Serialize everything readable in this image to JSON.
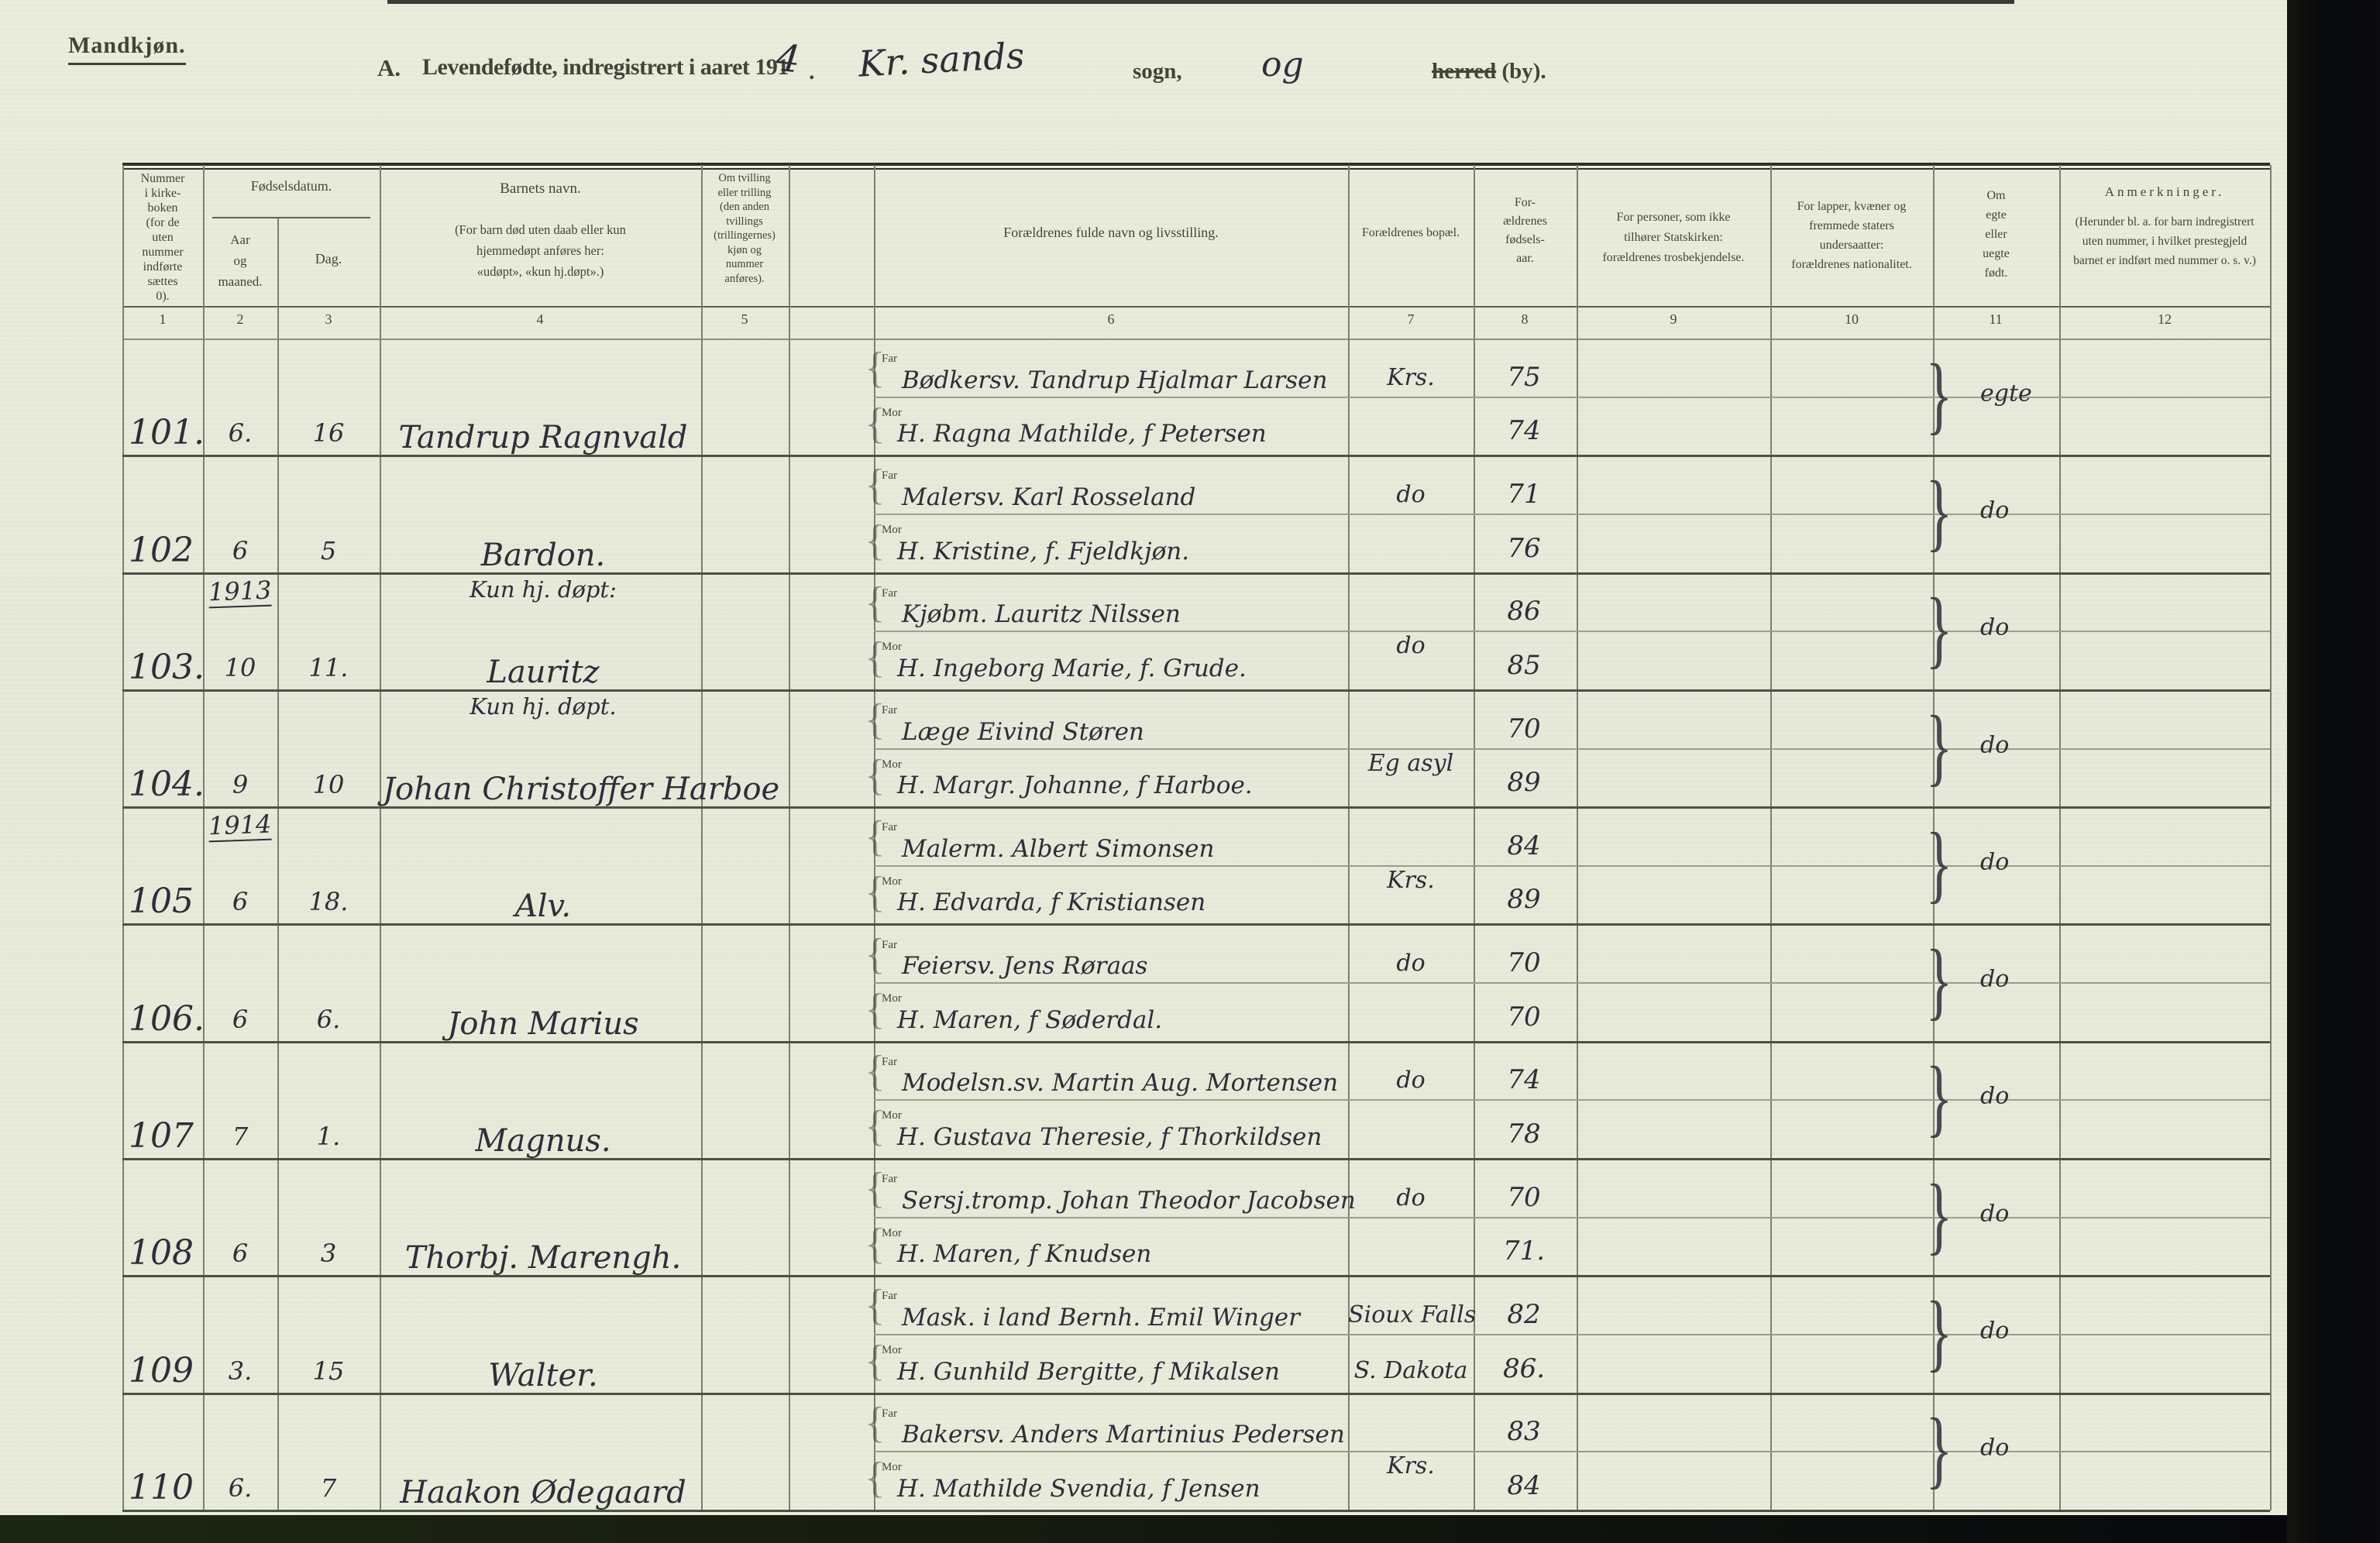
{
  "header": {
    "section_label": "Mandkjøn.",
    "title_a": "A.",
    "title_printed": "Levendefødte, indregistrert i aaret 191",
    "title_year_hand": "4",
    "title_period": ".",
    "place_hand": "Kr. sands",
    "sogn_label": "sogn,",
    "og_hand": "og",
    "herred_struck": "herred",
    "by_label": "(by)."
  },
  "colors": {
    "paper": "#e9ecdb",
    "print_ink": "#3f4437",
    "hand_ink": "#2b2d38",
    "rule_dark": "#2e3128",
    "scanner_edge": "#0a0b0f"
  },
  "table": {
    "columns": {
      "c1": "Nummer\ni kirke-\nboken\n(for de\nuten\nnummer\nindførte\nsættes\n0).",
      "fodselsdatum": "Fødselsdatum.",
      "c2": "Aar\nog\nmaaned.",
      "c3": "Dag.",
      "c4a": "Barnets navn.",
      "c4b": "(For barn død uten daab eller kun\nhjemmedøpt anføres her:\n«udøpt», «kun hj.døpt».)",
      "c5": "Om tvilling\neller trilling\n(den anden\ntvillings\n(trillingernes)\nkjøn og\nnummer\nanføres).",
      "c6": "Forældrenes fulde navn og livsstilling.",
      "c7": "Forældrenes bopæl.",
      "c8": "For-\nældrenes\nfødsels-\naar.",
      "c9": "For personer, som ikke\ntilhører Statskirken:\nforældrenes trosbekjendelse.",
      "c10": "For lapper, kvæner og\nfremmede staters\nundersaatter:\nforældrenes nationalitet.",
      "c11": "Om\negte\neller\nuegte\nfødt.",
      "c12a": "Anmerkninger.",
      "c12b": "(Herunder bl. a. for barn indregistrert\nuten nummer, i hvilket prestegjeld\nbarnet er indført med nummer o. s. v.)"
    },
    "numbers": [
      "1",
      "2",
      "3",
      "4",
      "5",
      "6",
      "7",
      "8",
      "9",
      "10",
      "11",
      "12"
    ],
    "row_labels": {
      "far": "Far",
      "mor": "Mor"
    },
    "glyphs": {
      "row_brace": "{",
      "group_brace": "}"
    }
  },
  "entries": [
    {
      "nummer": "101.",
      "aar": "6.",
      "dag": "16",
      "navn": "Tandrup Ragnvald",
      "far": "Bødkersv. Tandrup Hjalmar Larsen",
      "mor": "H. Ragna Mathilde, f Petersen",
      "bopel_far": "Krs.",
      "bopel_pos": "far",
      "aar_far": "75",
      "aar_mor": "74",
      "egte": "egte"
    },
    {
      "nummer": "102",
      "aar": "6",
      "dag": "5",
      "navn": "Bardon.",
      "far": "Malersv. Karl Rosseland",
      "mor": "H. Kristine, f. Fjeldkjøn.",
      "bopel_far": "do",
      "bopel_pos": "far",
      "aar_far": "71",
      "aar_mor": "76",
      "egte": "do"
    },
    {
      "nummer": "103.",
      "pre_aar": "1913",
      "aar": "10",
      "dag": "11.",
      "note": "Kun hj. døpt:",
      "navn": "Lauritz",
      "far": "Kjøbm. Lauritz Nilssen",
      "mor": "H. Ingeborg Marie, f. Grude.",
      "bopel_far": "do",
      "bopel_pos": "center",
      "aar_far": "86",
      "aar_mor": "85",
      "egte": "do"
    },
    {
      "nummer": "104.",
      "aar": "9",
      "dag": "10",
      "note": "Kun hj. døpt.",
      "navn": "Johan Christoffer Harboe",
      "far": "Læge Eivind Støren",
      "mor": "H. Margr. Johanne, f Harboe.",
      "bopel_far": "Eg asyl",
      "bopel_pos": "center",
      "aar_far": "70",
      "aar_mor": "89",
      "egte": "do"
    },
    {
      "nummer": "105",
      "pre_aar": "1914",
      "aar": "6",
      "dag": "18.",
      "navn": "Alv.",
      "far": "Malerm. Albert Simonsen",
      "mor": "H. Edvarda, f Kristiansen",
      "bopel_far": "Krs.",
      "bopel_pos": "center",
      "aar_far": "84",
      "aar_mor": "89",
      "egte": "do"
    },
    {
      "nummer": "106.",
      "aar": "6",
      "dag": "6.",
      "navn": "John Marius",
      "far": "Feiersv. Jens Røraas",
      "mor": "H. Maren, f Søderdal.",
      "bopel_far": "do",
      "bopel_pos": "far",
      "aar_far": "70",
      "aar_mor": "70",
      "egte": "do"
    },
    {
      "nummer": "107",
      "aar": "7",
      "dag": "1.",
      "navn": "Magnus.",
      "far": "Modelsn.sv. Martin Aug. Mortensen",
      "mor": "H. Gustava Theresie, f Thorkildsen",
      "bopel_far": "do",
      "bopel_pos": "far",
      "aar_far": "74",
      "aar_mor": "78",
      "egte": "do"
    },
    {
      "nummer": "108",
      "aar": "6",
      "dag": "3",
      "navn": "Thorbj. Marengh.",
      "far": "Sersj.tromp. Johan Theodor Jacobsen",
      "mor": "H. Maren, f Knudsen",
      "bopel_far": "do",
      "bopel_pos": "far",
      "aar_far": "70",
      "aar_mor": "71.",
      "egte": "do"
    },
    {
      "nummer": "109",
      "aar": "3.",
      "dag": "15",
      "navn": "Walter.",
      "far": "Mask. i land Bernh. Emil Winger",
      "mor": "H. Gunhild Bergitte, f Mikalsen",
      "bopel_far": "Sioux Falls",
      "bopel_mor": "S. Dakota",
      "bopel_pos": "far",
      "aar_far": "82",
      "aar_mor": "86.",
      "egte": "do"
    },
    {
      "nummer": "110",
      "aar": "6.",
      "dag": "7",
      "navn": "Haakon Ødegaard",
      "far": "Bakersv. Anders Martinius Pedersen",
      "mor": "H. Mathilde Svendia, f Jensen",
      "bopel_far": "Krs.",
      "bopel_pos": "center",
      "aar_far": "83",
      "aar_mor": "84",
      "egte": "do"
    }
  ]
}
